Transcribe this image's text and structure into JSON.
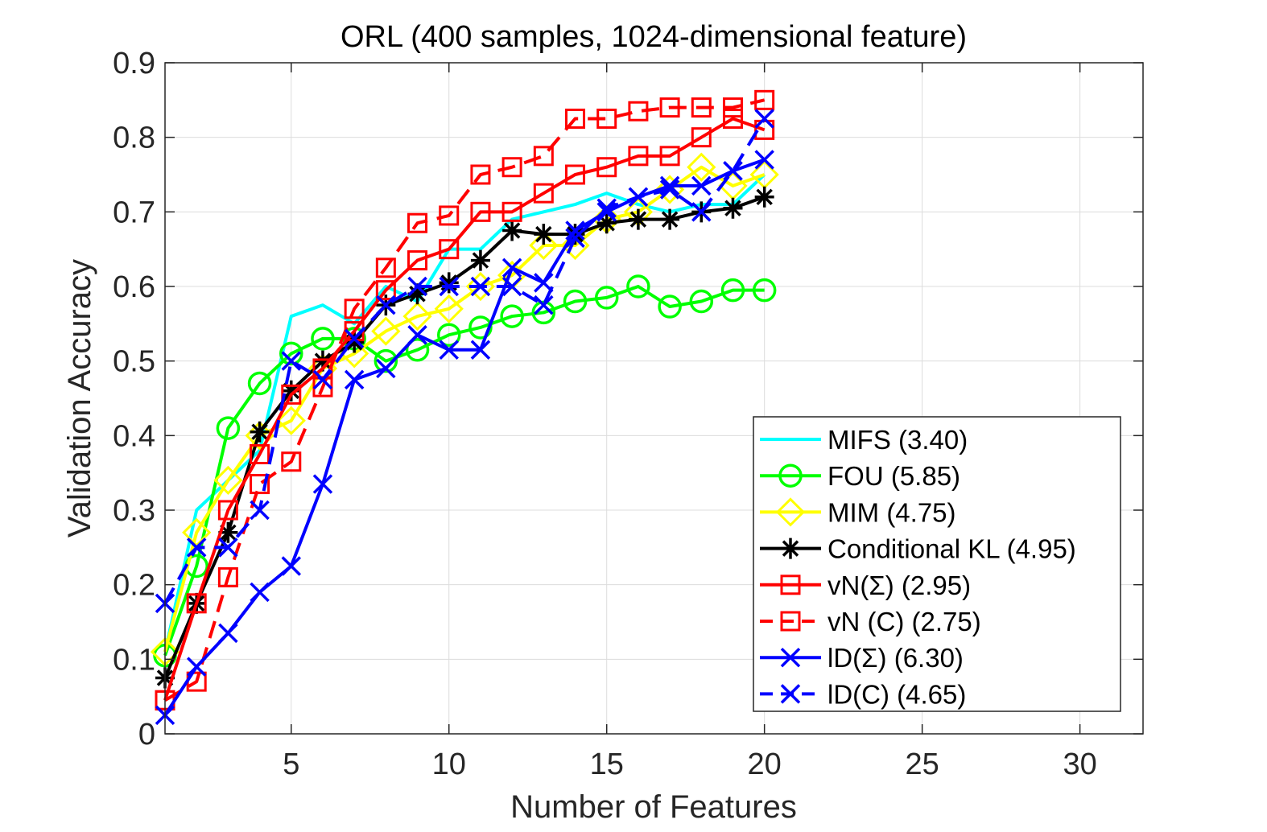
{
  "chart_data": {
    "type": "line",
    "title": "ORL (400 samples, 1024-dimensional feature)",
    "xlabel": "Number of Features",
    "ylabel": "Validation Accuracy",
    "xlim": [
      1,
      32
    ],
    "ylim": [
      0,
      0.9
    ],
    "xticks": [
      5,
      10,
      15,
      20,
      25,
      30
    ],
    "yticks": [
      0,
      0.1,
      0.2,
      0.3,
      0.4,
      0.5,
      0.6,
      0.7,
      0.8,
      0.9
    ],
    "xtick_labels": [
      "5",
      "10",
      "15",
      "20",
      "25",
      "30"
    ],
    "ytick_labels": [
      "0",
      "0.1",
      "0.2",
      "0.3",
      "0.4",
      "0.5",
      "0.6",
      "0.7",
      "0.8",
      "0.9"
    ],
    "grid": true,
    "legend_position": "bottom-right",
    "x": [
      1,
      2,
      3,
      4,
      5,
      6,
      7,
      8,
      9,
      10,
      11,
      12,
      13,
      14,
      15,
      16,
      17,
      18,
      19,
      20
    ],
    "series": [
      {
        "name": "MIFS (3.40)",
        "color": "#00FFFF",
        "marker": "none",
        "dash": "solid",
        "values": [
          0.11,
          0.3,
          0.34,
          0.38,
          0.56,
          0.575,
          0.55,
          0.6,
          0.58,
          0.65,
          0.65,
          0.69,
          0.7,
          0.71,
          0.725,
          0.71,
          0.7,
          0.71,
          0.71,
          0.75
        ]
      },
      {
        "name": "FOU (5.85)",
        "color": "#00FF00",
        "marker": "circle",
        "dash": "solid",
        "values": [
          0.105,
          0.225,
          0.41,
          0.47,
          0.51,
          0.53,
          0.53,
          0.5,
          0.515,
          0.535,
          0.545,
          0.56,
          0.565,
          0.58,
          0.585,
          0.6,
          0.573,
          0.58,
          0.595,
          0.595
        ]
      },
      {
        "name": "MIM (4.75)",
        "color": "#FFFF00",
        "marker": "diamond",
        "dash": "solid",
        "values": [
          0.11,
          0.27,
          0.34,
          0.4,
          0.42,
          0.49,
          0.51,
          0.54,
          0.56,
          0.57,
          0.6,
          0.615,
          0.655,
          0.655,
          0.69,
          0.7,
          0.73,
          0.76,
          0.735,
          0.75
        ]
      },
      {
        "name": "Conditional KL (4.95)",
        "color": "#000000",
        "marker": "asterisk",
        "dash": "solid",
        "values": [
          0.075,
          0.175,
          0.27,
          0.405,
          0.46,
          0.5,
          0.525,
          0.575,
          0.59,
          0.605,
          0.635,
          0.675,
          0.67,
          0.67,
          0.685,
          0.69,
          0.69,
          0.7,
          0.705,
          0.72
        ]
      },
      {
        "name": "vN(Σ) (2.95)",
        "color": "#FF0000",
        "marker": "square",
        "dash": "solid",
        "values": [
          0.045,
          0.175,
          0.3,
          0.375,
          0.455,
          0.49,
          0.54,
          0.595,
          0.635,
          0.65,
          0.7,
          0.7,
          0.725,
          0.75,
          0.76,
          0.775,
          0.775,
          0.8,
          0.825,
          0.81
        ]
      },
      {
        "name": "vN (C) (2.75)",
        "color": "#FF0000",
        "marker": "square",
        "dash": "dashed",
        "values": [
          0.045,
          0.07,
          0.21,
          0.335,
          0.365,
          0.465,
          0.57,
          0.625,
          0.685,
          0.695,
          0.75,
          0.76,
          0.775,
          0.825,
          0.825,
          0.835,
          0.84,
          0.84,
          0.84,
          0.85
        ]
      },
      {
        "name": "lD(Σ) (6.30)",
        "color": "#0000FF",
        "marker": "x",
        "dash": "solid",
        "values": [
          0.025,
          0.09,
          0.135,
          0.19,
          0.225,
          0.335,
          0.475,
          0.49,
          0.535,
          0.515,
          0.515,
          0.625,
          0.605,
          0.675,
          0.7,
          0.72,
          0.735,
          0.735,
          0.755,
          0.77
        ]
      },
      {
        "name": "lD(C) (4.65)",
        "color": "#0000FF",
        "marker": "x",
        "dash": "dashed",
        "values": [
          0.175,
          0.25,
          0.25,
          0.3,
          0.5,
          0.475,
          0.53,
          0.575,
          0.6,
          0.6,
          0.6,
          0.6,
          0.575,
          0.665,
          0.705,
          0.72,
          0.73,
          0.7,
          0.755,
          0.825
        ]
      }
    ]
  }
}
